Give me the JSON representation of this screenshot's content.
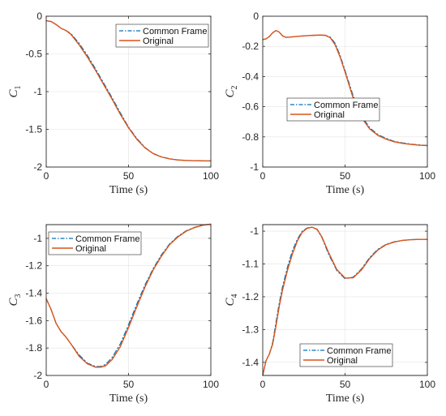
{
  "chart_data": [
    {
      "type": "line",
      "ylabel": "C",
      "ylabel_sub": "1",
      "xlabel": "Time (s)",
      "xlim": [
        0,
        100
      ],
      "ylim": [
        -2,
        0
      ],
      "xticks": [
        0,
        50,
        100
      ],
      "yticks": [
        0,
        -0.5,
        -1,
        -1.5,
        -2
      ],
      "ytick_labels": [
        "0",
        "-0.5",
        "-1",
        "-1.5",
        "-2"
      ],
      "grid": true,
      "legend_position": "top-right",
      "series": [
        {
          "name": "Common Frame",
          "style": "dash-dot",
          "color": "#0072BD",
          "x": [
            0,
            3,
            6,
            9,
            12,
            15,
            20,
            25,
            30,
            35,
            40,
            45,
            50,
            55,
            60,
            65,
            70,
            75,
            80,
            85,
            90,
            95,
            100
          ],
          "y": [
            -0.06,
            -0.07,
            -0.11,
            -0.16,
            -0.19,
            -0.23,
            -0.36,
            -0.52,
            -0.7,
            -0.89,
            -1.08,
            -1.28,
            -1.47,
            -1.62,
            -1.74,
            -1.82,
            -1.865,
            -1.89,
            -1.905,
            -1.912,
            -1.915,
            -1.917,
            -1.918
          ]
        },
        {
          "name": "Original",
          "style": "solid",
          "color": "#D95319",
          "x": [
            0,
            3,
            6,
            9,
            12,
            15,
            20,
            25,
            30,
            35,
            40,
            45,
            50,
            55,
            60,
            65,
            70,
            75,
            80,
            85,
            90,
            95,
            100
          ],
          "y": [
            -0.06,
            -0.07,
            -0.11,
            -0.16,
            -0.19,
            -0.24,
            -0.38,
            -0.54,
            -0.72,
            -0.91,
            -1.1,
            -1.3,
            -1.48,
            -1.63,
            -1.745,
            -1.822,
            -1.867,
            -1.892,
            -1.906,
            -1.913,
            -1.916,
            -1.918,
            -1.919
          ]
        }
      ]
    },
    {
      "type": "line",
      "ylabel": "C",
      "ylabel_sub": "2",
      "xlabel": "Time (s)",
      "xlim": [
        0,
        100
      ],
      "ylim": [
        -1,
        0
      ],
      "xticks": [
        0,
        50,
        100
      ],
      "yticks": [
        0,
        -0.2,
        -0.4,
        -0.6,
        -0.8,
        -1
      ],
      "ytick_labels": [
        "0",
        "-0.2",
        "-0.4",
        "-0.6",
        "-0.8",
        "-1"
      ],
      "grid": true,
      "legend_position": "center-right",
      "series": [
        {
          "name": "Common Frame",
          "style": "dash-dot",
          "color": "#0072BD",
          "x": [
            0,
            2,
            4,
            6,
            8,
            10,
            12,
            14,
            17,
            20,
            25,
            30,
            35,
            38,
            41,
            44,
            47,
            50,
            55,
            60,
            65,
            70,
            75,
            80,
            85,
            90,
            95,
            100
          ],
          "y": [
            -0.155,
            -0.15,
            -0.135,
            -0.11,
            -0.095,
            -0.105,
            -0.13,
            -0.14,
            -0.138,
            -0.135,
            -0.13,
            -0.127,
            -0.125,
            -0.126,
            -0.138,
            -0.18,
            -0.26,
            -0.36,
            -0.53,
            -0.66,
            -0.74,
            -0.785,
            -0.81,
            -0.83,
            -0.84,
            -0.848,
            -0.853,
            -0.857
          ]
        },
        {
          "name": "Original",
          "style": "solid",
          "color": "#D95319",
          "x": [
            0,
            2,
            4,
            6,
            8,
            10,
            12,
            14,
            17,
            20,
            25,
            30,
            35,
            38,
            41,
            44,
            47,
            50,
            55,
            60,
            65,
            70,
            75,
            80,
            85,
            90,
            95,
            100
          ],
          "y": [
            -0.155,
            -0.15,
            -0.135,
            -0.11,
            -0.095,
            -0.105,
            -0.13,
            -0.14,
            -0.138,
            -0.135,
            -0.13,
            -0.127,
            -0.125,
            -0.127,
            -0.142,
            -0.19,
            -0.27,
            -0.37,
            -0.545,
            -0.672,
            -0.748,
            -0.79,
            -0.815,
            -0.833,
            -0.843,
            -0.85,
            -0.855,
            -0.858
          ]
        }
      ]
    },
    {
      "type": "line",
      "ylabel": "C",
      "ylabel_sub": "3",
      "xlabel": "Time (s)",
      "xlim": [
        0,
        100
      ],
      "ylim": [
        -2,
        -0.9
      ],
      "xticks": [
        0,
        50,
        100
      ],
      "yticks": [
        -1,
        -1.2,
        -1.4,
        -1.6,
        -1.8,
        -2
      ],
      "ytick_labels": [
        "-1",
        "-1.2",
        "-1.4",
        "-1.6",
        "-1.8",
        "-2"
      ],
      "grid": true,
      "legend_position": "top-left",
      "series": [
        {
          "name": "Common Frame",
          "style": "dash-dot",
          "color": "#0072BD",
          "x": [
            0,
            3,
            6,
            9,
            12,
            15,
            20,
            25,
            30,
            33,
            36,
            40,
            45,
            50,
            55,
            60,
            65,
            70,
            75,
            80,
            85,
            90,
            95,
            100
          ],
          "y": [
            -1.44,
            -1.52,
            -1.62,
            -1.68,
            -1.72,
            -1.77,
            -1.85,
            -1.91,
            -1.935,
            -1.935,
            -1.92,
            -1.87,
            -1.77,
            -1.63,
            -1.48,
            -1.34,
            -1.22,
            -1.12,
            -1.04,
            -0.985,
            -0.945,
            -0.92,
            -0.903,
            -0.895
          ]
        },
        {
          "name": "Original",
          "style": "solid",
          "color": "#D95319",
          "x": [
            0,
            3,
            6,
            9,
            12,
            15,
            20,
            25,
            30,
            33,
            36,
            40,
            45,
            50,
            55,
            60,
            65,
            70,
            75,
            80,
            85,
            90,
            95,
            100
          ],
          "y": [
            -1.44,
            -1.52,
            -1.62,
            -1.68,
            -1.72,
            -1.77,
            -1.86,
            -1.915,
            -1.94,
            -1.94,
            -1.93,
            -1.885,
            -1.79,
            -1.65,
            -1.5,
            -1.355,
            -1.23,
            -1.13,
            -1.045,
            -0.99,
            -0.948,
            -0.922,
            -0.905,
            -0.896
          ]
        }
      ]
    },
    {
      "type": "line",
      "ylabel": "C",
      "ylabel_sub": "4",
      "xlabel": "Time (s)",
      "xlim": [
        0,
        100
      ],
      "ylim": [
        -1.44,
        -0.98
      ],
      "xticks": [
        0,
        50,
        100
      ],
      "yticks": [
        -1,
        -1.1,
        -1.2,
        -1.3,
        -1.4
      ],
      "ytick_labels": [
        "-1",
        "-1.1",
        "-1.2",
        "-1.3",
        "-1.4"
      ],
      "grid": true,
      "legend_position": "bottom-right",
      "series": [
        {
          "name": "Common Frame",
          "style": "dash-dot",
          "color": "#0072BD",
          "x": [
            0,
            2,
            4,
            6,
            8,
            10,
            12,
            15,
            18,
            21,
            24,
            27,
            30,
            33,
            36,
            40,
            45,
            50,
            55,
            60,
            65,
            70,
            75,
            80,
            85,
            90,
            95,
            100
          ],
          "y": [
            -1.44,
            -1.395,
            -1.375,
            -1.34,
            -1.28,
            -1.22,
            -1.17,
            -1.11,
            -1.06,
            -1.025,
            -1.0,
            -0.99,
            -0.988,
            -0.995,
            -1.02,
            -1.07,
            -1.12,
            -1.145,
            -1.14,
            -1.115,
            -1.08,
            -1.055,
            -1.04,
            -1.032,
            -1.028,
            -1.026,
            -1.025,
            -1.025
          ]
        },
        {
          "name": "Original",
          "style": "solid",
          "color": "#D95319",
          "x": [
            0,
            2,
            4,
            6,
            8,
            10,
            12,
            15,
            18,
            21,
            24,
            27,
            30,
            33,
            36,
            40,
            45,
            50,
            55,
            60,
            65,
            70,
            75,
            80,
            85,
            90,
            95,
            100
          ],
          "y": [
            -1.44,
            -1.395,
            -1.375,
            -1.345,
            -1.29,
            -1.23,
            -1.18,
            -1.12,
            -1.07,
            -1.03,
            -1.003,
            -0.991,
            -0.988,
            -0.994,
            -1.018,
            -1.065,
            -1.117,
            -1.143,
            -1.142,
            -1.118,
            -1.083,
            -1.057,
            -1.041,
            -1.033,
            -1.028,
            -1.026,
            -1.025,
            -1.025
          ]
        }
      ]
    }
  ]
}
